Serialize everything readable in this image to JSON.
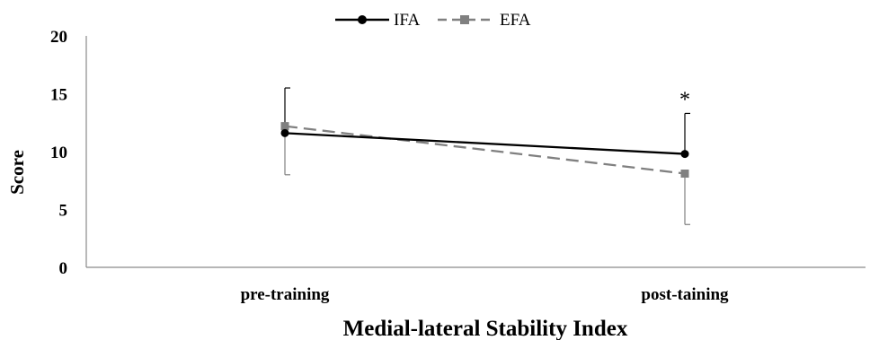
{
  "chart_data": {
    "type": "line",
    "title": "",
    "xlabel": "Medial-lateral Stability Index",
    "ylabel": "Score",
    "categories": [
      "pre-training",
      "post-taining"
    ],
    "ylim": [
      0,
      20
    ],
    "yticks": [
      0,
      5,
      10,
      15,
      20
    ],
    "grid": false,
    "legend_position": "top",
    "series": [
      {
        "name": "IFA",
        "values": [
          11.6,
          9.8
        ],
        "error_upper": [
          3.9,
          3.5
        ],
        "error_lower": [
          null,
          null
        ],
        "color": "#000000",
        "line_style": "solid",
        "marker": "circle"
      },
      {
        "name": "EFA",
        "values": [
          12.2,
          8.1
        ],
        "error_upper": [
          null,
          null
        ],
        "error_lower": [
          4.2,
          4.4
        ],
        "color": "#808080",
        "line_style": "dashed",
        "marker": "square"
      }
    ],
    "annotations": [
      {
        "text": "*",
        "category": "post-taining",
        "y": 14.7
      }
    ]
  }
}
